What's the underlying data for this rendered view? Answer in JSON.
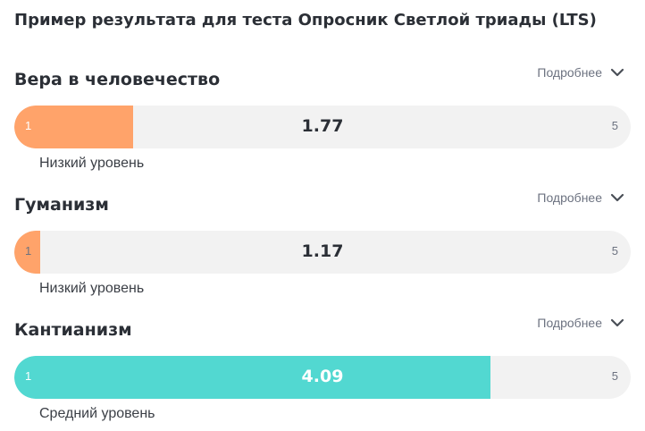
{
  "page_title": "Пример результата для теста Опросник Светлой триады (LTS)",
  "scale": {
    "min": 1,
    "max": 5
  },
  "details_label": "Подробнее",
  "sections": [
    {
      "title": "Вера в человечество",
      "value": 1.77,
      "value_label": "1.77",
      "min_label": "1",
      "max_label": "5",
      "level": "Низкий уровень",
      "bar_color": "#ffa36a",
      "chevron_icon": "chevron-down-icon"
    },
    {
      "title": "Гуманизм",
      "value": 1.17,
      "value_label": "1.17",
      "min_label": "1",
      "max_label": "5",
      "level": "Низкий уровень",
      "bar_color": "#ffa36a",
      "chevron_icon": "chevron-down-icon"
    },
    {
      "title": "Кантианизм",
      "value": 4.09,
      "value_label": "4.09",
      "min_label": "1",
      "max_label": "5",
      "level": "Средний уровень",
      "bar_color": "#52d8d1",
      "chevron_icon": "chevron-down-icon"
    }
  ]
}
